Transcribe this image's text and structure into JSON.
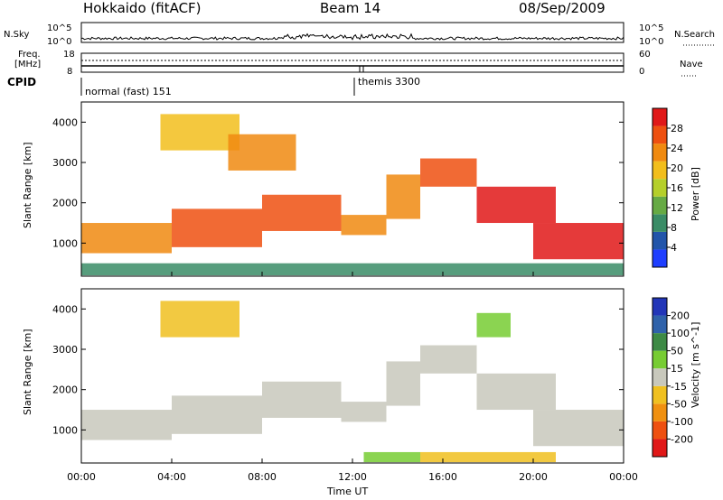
{
  "header": {
    "radar": "Hokkaido (fitACF)",
    "beam": "Beam 14",
    "date": "08/Sep/2009"
  },
  "top_panels": {
    "nsky_label": "N.Sky",
    "nsearch_label": "N.Search",
    "nsky_ticks": [
      "10^5",
      "10^0"
    ],
    "nsearch_ticks": [
      "10^5",
      "10^0"
    ],
    "freq_label_1": "Freq.",
    "freq_label_2": "[MHz]",
    "freq_ticks": [
      "18",
      "8"
    ],
    "nave_label": "Nave",
    "nave_ticks": [
      "60",
      "0"
    ],
    "cpid_label": "CPID",
    "cpid_segments": [
      {
        "text": "normal (fast) 151",
        "start_hour": 0
      },
      {
        "text": "themis 3300",
        "start_hour": 12.1
      }
    ]
  },
  "x_axis": {
    "label": "Time UT",
    "ticks": [
      "00:00",
      "04:00",
      "08:00",
      "12:00",
      "16:00",
      "20:00",
      "00:00"
    ],
    "range_hours": [
      0,
      24
    ]
  },
  "colors": {
    "power_scale": [
      "#1f3fff",
      "#2255aa",
      "#3a8c66",
      "#66aa44",
      "#b5cf2a",
      "#f2be1c",
      "#f08a10",
      "#ee5010",
      "#e01818"
    ],
    "velocity_scale": [
      "#2236b8",
      "#2f62aa",
      "#3d8a45",
      "#77cc33",
      "#c8c8bc",
      "#f0c020",
      "#f09010",
      "#ee5010",
      "#e01818"
    ]
  },
  "chart_data": [
    {
      "type": "heatmap",
      "ylabel": "Slant Range [km]",
      "colorbar_label": "Power [dB]",
      "colorbar_ticks": [
        "28",
        "24",
        "20",
        "16",
        "12",
        "8",
        "4"
      ],
      "ylim": [
        180,
        4500
      ],
      "yticks": [
        "1000",
        "2000",
        "3000",
        "4000"
      ],
      "xlim": [
        0,
        24
      ],
      "regions": [
        {
          "t0": 0.0,
          "t1": 4.0,
          "r0": 750,
          "r1": 1500,
          "level": 6
        },
        {
          "t0": 4.0,
          "t1": 8.0,
          "r0": 900,
          "r1": 1850,
          "level": 7
        },
        {
          "t0": 8.0,
          "t1": 11.5,
          "r0": 1300,
          "r1": 2200,
          "level": 7
        },
        {
          "t0": 11.5,
          "t1": 13.5,
          "r0": 1200,
          "r1": 1700,
          "level": 6
        },
        {
          "t0": 13.5,
          "t1": 15.0,
          "r0": 1600,
          "r1": 2700,
          "level": 6
        },
        {
          "t0": 15.0,
          "t1": 17.5,
          "r0": 2400,
          "r1": 3100,
          "level": 7
        },
        {
          "t0": 17.5,
          "t1": 21.0,
          "r0": 1500,
          "r1": 2400,
          "level": 8
        },
        {
          "t0": 20.0,
          "t1": 24.0,
          "r0": 600,
          "r1": 1500,
          "level": 8
        },
        {
          "t0": 3.5,
          "t1": 7.0,
          "r0": 3300,
          "r1": 4200,
          "level": 5
        },
        {
          "t0": 6.5,
          "t1": 9.5,
          "r0": 2800,
          "r1": 3700,
          "level": 6
        },
        {
          "t0": 0.0,
          "t1": 24.0,
          "r0": 200,
          "r1": 500,
          "level": 2
        }
      ]
    },
    {
      "type": "heatmap",
      "ylabel": "Slant Range [km]",
      "colorbar_label": "Velocity [m s^-1]",
      "colorbar_ticks": [
        "200",
        "100",
        "50",
        "15",
        "-15",
        "-50",
        "-100",
        "-200"
      ],
      "ylim": [
        180,
        4500
      ],
      "yticks": [
        "1000",
        "2000",
        "3000",
        "4000"
      ],
      "xlim": [
        0,
        24
      ],
      "regions": [
        {
          "t0": 0.0,
          "t1": 4.0,
          "r0": 750,
          "r1": 1500,
          "level": 4
        },
        {
          "t0": 4.0,
          "t1": 8.0,
          "r0": 900,
          "r1": 1850,
          "level": 4
        },
        {
          "t0": 8.0,
          "t1": 11.5,
          "r0": 1300,
          "r1": 2200,
          "level": 4
        },
        {
          "t0": 11.5,
          "t1": 13.5,
          "r0": 1200,
          "r1": 1700,
          "level": 4
        },
        {
          "t0": 13.5,
          "t1": 15.0,
          "r0": 1600,
          "r1": 2700,
          "level": 4
        },
        {
          "t0": 15.0,
          "t1": 17.5,
          "r0": 2400,
          "r1": 3100,
          "level": 4
        },
        {
          "t0": 17.5,
          "t1": 21.0,
          "r0": 1500,
          "r1": 2400,
          "level": 4
        },
        {
          "t0": 20.0,
          "t1": 24.0,
          "r0": 600,
          "r1": 1500,
          "level": 4
        },
        {
          "t0": 3.5,
          "t1": 7.0,
          "r0": 3300,
          "r1": 4200,
          "level": 5
        },
        {
          "t0": 17.5,
          "t1": 19.0,
          "r0": 3300,
          "r1": 3900,
          "level": 3
        },
        {
          "t0": 12.5,
          "t1": 15.0,
          "r0": 200,
          "r1": 450,
          "level": 3
        },
        {
          "t0": 15.0,
          "t1": 21.0,
          "r0": 200,
          "r1": 450,
          "level": 5
        }
      ]
    }
  ]
}
